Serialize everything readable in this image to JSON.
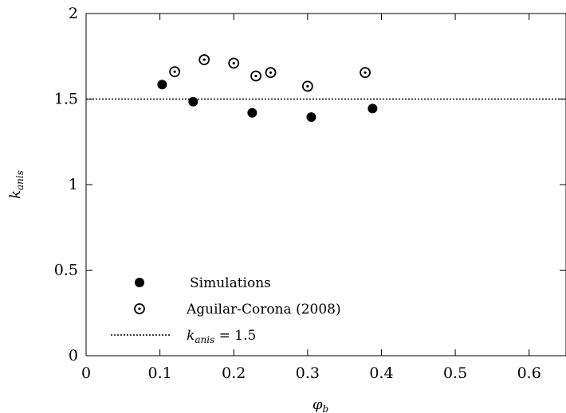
{
  "chart_data": {
    "type": "scatter",
    "xlim": [
      0,
      0.65
    ],
    "ylim": [
      0,
      2
    ],
    "x_ticks": [
      "0",
      "0.1",
      "0.2",
      "0.3",
      "0.4",
      "0.5",
      "0.6"
    ],
    "y_ticks": [
      "0",
      "0.5",
      "1",
      "1.5",
      "2"
    ],
    "xlabel": {
      "main": "φ",
      "sub": "b"
    },
    "ylabel": {
      "main": "k",
      "sub": "anis"
    },
    "series": [
      {
        "name": "Simulations",
        "marker": "filled-circle",
        "color": "#000000",
        "points": [
          {
            "x": 0.103,
            "y": 1.585
          },
          {
            "x": 0.145,
            "y": 1.485
          },
          {
            "x": 0.225,
            "y": 1.42
          },
          {
            "x": 0.305,
            "y": 1.395
          },
          {
            "x": 0.388,
            "y": 1.445
          }
        ]
      },
      {
        "name": "Aguilar-Corona (2008)",
        "marker": "circle-dot",
        "color": "#000000",
        "points": [
          {
            "x": 0.12,
            "y": 1.66
          },
          {
            "x": 0.16,
            "y": 1.73
          },
          {
            "x": 0.2,
            "y": 1.71
          },
          {
            "x": 0.23,
            "y": 1.635
          },
          {
            "x": 0.25,
            "y": 1.655
          },
          {
            "x": 0.3,
            "y": 1.575
          },
          {
            "x": 0.378,
            "y": 1.655
          }
        ]
      }
    ],
    "reference_line": {
      "y": 1.5,
      "style": "dotted",
      "label_main": "k",
      "label_sub": "anis",
      "label_rest": " = 1.5"
    },
    "legend_placement": "bottom-left",
    "grid": false
  }
}
